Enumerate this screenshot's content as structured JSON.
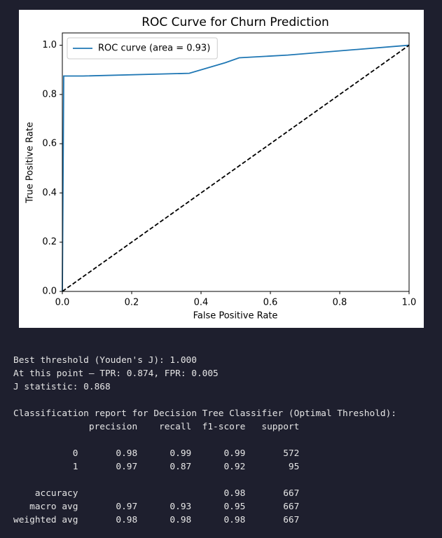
{
  "chart_data": {
    "type": "line",
    "title": "ROC Curve for Churn Prediction",
    "x_label": "False Positive Rate",
    "y_label": "True Positive Rate",
    "xlim": [
      0,
      1
    ],
    "ylim": [
      0,
      1.05
    ],
    "xticks": [
      {
        "value": 0,
        "label": "0.0"
      },
      {
        "value": 0.2,
        "label": "0.2"
      },
      {
        "value": 0.4,
        "label": "0.4"
      },
      {
        "value": 0.6,
        "label": "0.6"
      },
      {
        "value": 0.8,
        "label": "0.8"
      },
      {
        "value": 1,
        "label": "1.0"
      }
    ],
    "yticks": [
      {
        "value": 0,
        "label": "0.0"
      },
      {
        "value": 0.2,
        "label": "0.2"
      },
      {
        "value": 0.4,
        "label": "0.4"
      },
      {
        "value": 0.6,
        "label": "0.6"
      },
      {
        "value": 0.8,
        "label": "0.8"
      },
      {
        "value": 1,
        "label": "1.0"
      }
    ],
    "legend": "upper left",
    "series": [
      {
        "name": "ROC curve (area = 0.93)",
        "color": "#1f77b4",
        "linestyle": "solid",
        "x": [
          0,
          0.004,
          0.06,
          0.366,
          0.47,
          0.51,
          0.65,
          1
        ],
        "values": [
          0,
          0.875,
          0.875,
          0.886,
          0.929,
          0.949,
          0.96,
          1
        ]
      },
      {
        "color": "#000000",
        "linestyle": "dashed",
        "x": [
          0,
          1
        ],
        "values": [
          0,
          1
        ]
      }
    ]
  },
  "output": {
    "summary": [
      "Best threshold (Youden's J): 1.000",
      "At this point — TPR: 0.874, FPR: 0.005",
      "J statistic: 0.868"
    ],
    "report_title": "Classification report for Decision Tree Classifier (Optimal Threshold):",
    "report_header": "              precision    recall  f1-score   support",
    "class_rows": [
      "           0       0.98      0.99      0.99       572",
      "           1       0.97      0.87      0.92        95"
    ],
    "avg_rows": [
      "    accuracy                           0.98       667",
      "   macro avg       0.97      0.93      0.95       667",
      "weighted avg       0.98      0.98      0.98       667"
    ]
  }
}
